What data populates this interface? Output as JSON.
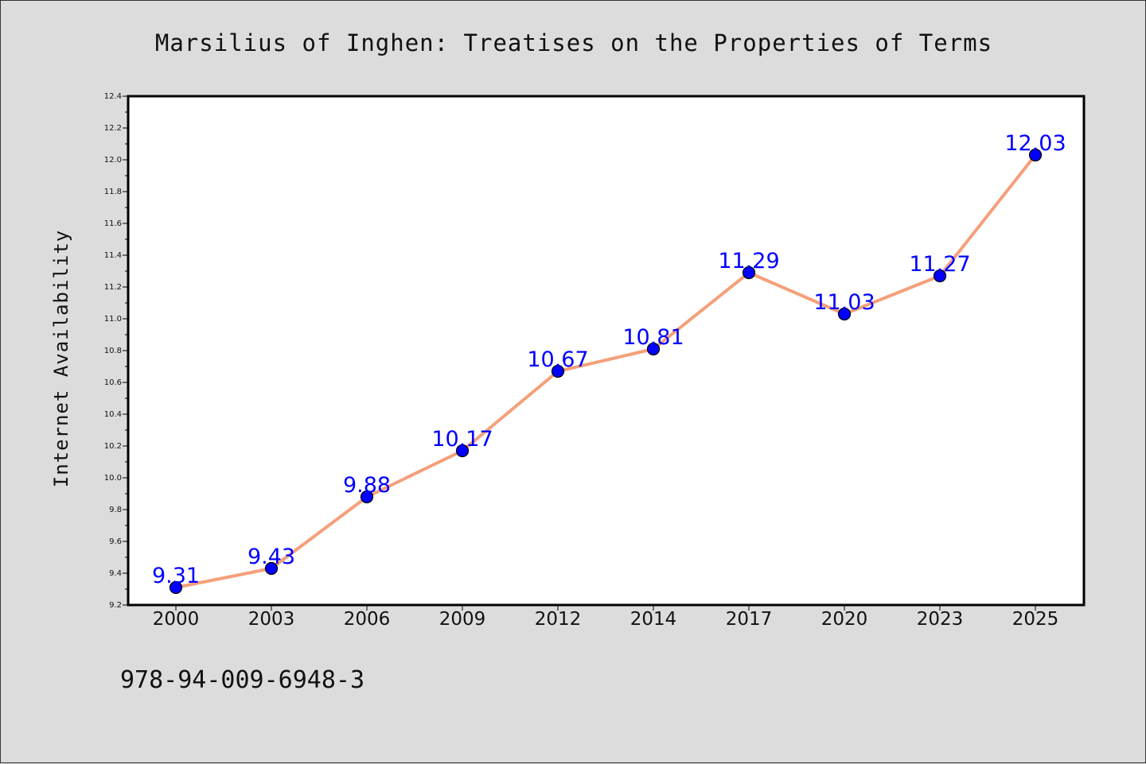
{
  "chart_data": {
    "type": "line",
    "title": "Marsilius of Inghen: Treatises on the Properties of Terms",
    "xlabel": "",
    "ylabel": "Internet Availability",
    "categories": [
      "2000",
      "2003",
      "2006",
      "2009",
      "2012",
      "2014",
      "2017",
      "2020",
      "2023",
      "2025"
    ],
    "values": [
      9.31,
      9.43,
      9.88,
      10.17,
      10.67,
      10.81,
      11.29,
      11.03,
      11.27,
      12.03
    ],
    "data_labels": [
      "9.31",
      "9.43",
      "9.88",
      "10.17",
      "10.67",
      "10.81",
      "11.29",
      "11.03",
      "11.27",
      "12.03"
    ],
    "ylim": [
      9.2,
      12.4
    ],
    "y_ticks": [
      "9.2",
      "9.4",
      "9.6",
      "9.8",
      "10.0",
      "10.2",
      "10.4",
      "10.6",
      "10.8",
      "11.0",
      "11.2",
      "11.4",
      "11.6",
      "11.8",
      "12.0",
      "12.2",
      "12.4"
    ],
    "grid": false,
    "legend": "none",
    "colors": {
      "line": "#f4a07a",
      "marker": "#0000ff",
      "label": "#0000ff",
      "background": "#dcdcdc",
      "plot_area": "#ffffff"
    }
  },
  "footer": {
    "isbn": "978-94-009-6948-3"
  }
}
